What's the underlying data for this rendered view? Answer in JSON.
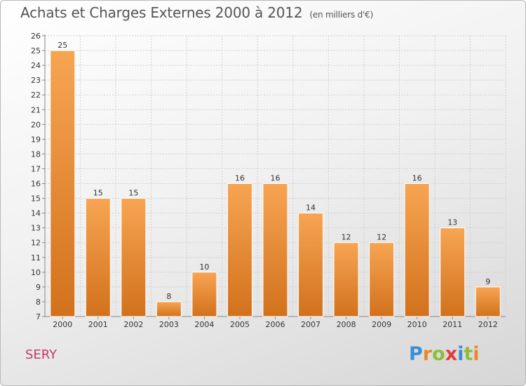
{
  "title": "Achats et Charges Externes 2000 à 2012",
  "unit": "(en milliers d'€)",
  "town": "SERY",
  "logo": {
    "letters": [
      {
        "ch": "P",
        "color": "#3a8fd3"
      },
      {
        "ch": "r",
        "color": "#e8892b"
      },
      {
        "ch": "o",
        "color": "#8bbf3a"
      },
      {
        "ch": "x",
        "color": "#e23a3a"
      },
      {
        "ch": "i",
        "color": "#3a8fd3"
      },
      {
        "ch": "t",
        "color": "#8bbf3a"
      },
      {
        "ch": "i",
        "color": "#e8892b"
      }
    ]
  },
  "colors": {
    "bar_top": "#f7a553",
    "bar_bottom": "#d2711c",
    "grid": "#d0d0d0"
  },
  "chart_data": {
    "type": "bar",
    "title": "Achats et Charges Externes 2000 à 2012",
    "categories": [
      "2000",
      "2001",
      "2002",
      "2003",
      "2004",
      "2005",
      "2006",
      "2007",
      "2008",
      "2009",
      "2010",
      "2011",
      "2012"
    ],
    "values": [
      25,
      15,
      15,
      8,
      10,
      16,
      16,
      14,
      12,
      12,
      16,
      13,
      9
    ],
    "ylim": [
      7,
      26
    ],
    "yticks": [
      7,
      8,
      9,
      10,
      11,
      12,
      13,
      14,
      15,
      16,
      17,
      18,
      19,
      20,
      21,
      22,
      23,
      24,
      25,
      26
    ],
    "grid": true,
    "xlabel": "",
    "ylabel": ""
  }
}
